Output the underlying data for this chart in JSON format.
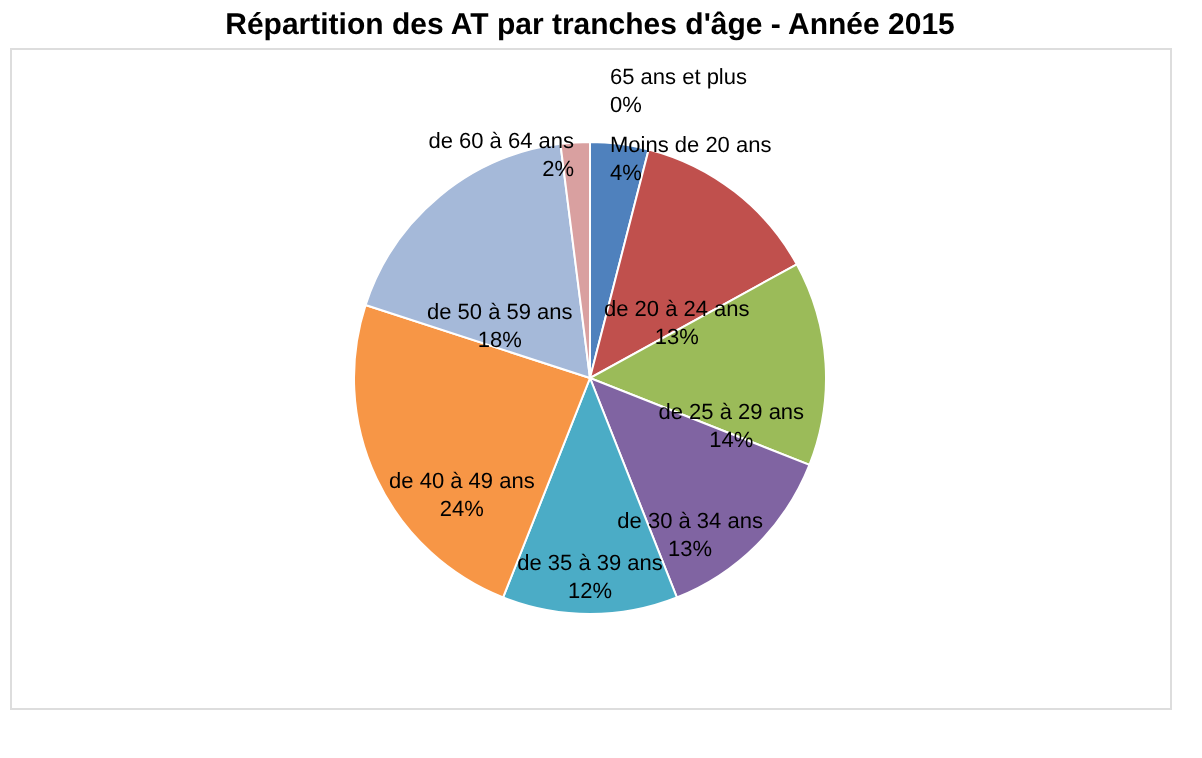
{
  "chart_data": {
    "type": "pie",
    "title": "Répartition des AT par tranches d'âge - Année 2015",
    "categories": [
      "Moins de 20 ans",
      "de 20 à 24 ans",
      "de 25 à 29 ans",
      "de 30 à 34 ans",
      "de 35 à 39 ans",
      "de 40 à 49 ans",
      "de 50 à 59 ans",
      "de 60 à 64 ans",
      "65 ans et plus"
    ],
    "values": [
      4,
      13,
      14,
      13,
      12,
      24,
      18,
      2,
      0
    ],
    "value_labels": [
      "4%",
      "13%",
      "14%",
      "13%",
      "12%",
      "24%",
      "18%",
      "2%",
      "0%"
    ],
    "colors": [
      "#4f81bd",
      "#c0504d",
      "#9bbb59",
      "#8064a2",
      "#4bacc6",
      "#f79646",
      "#a5b9d9",
      "#d9a0a0",
      "#c4d79b"
    ]
  }
}
